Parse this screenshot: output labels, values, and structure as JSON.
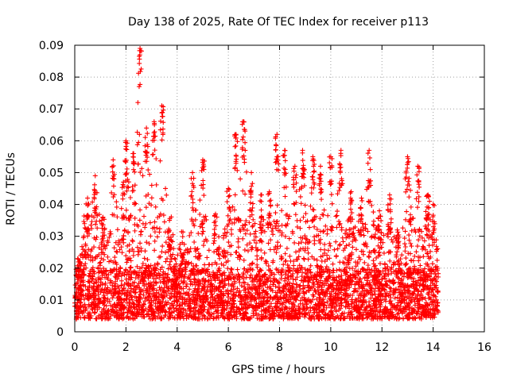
{
  "chart_data": {
    "type": "scatter",
    "title": "Day 138 of 2025, Rate Of TEC Index for receiver p113",
    "xlabel": "GPS time / hours",
    "ylabel": "ROTI / TECUs",
    "xlim": [
      0,
      16
    ],
    "ylim": [
      0,
      0.09
    ],
    "x_ticks": [
      0,
      2,
      4,
      6,
      8,
      10,
      12,
      14,
      16
    ],
    "y_ticks": [
      0,
      0.01,
      0.02,
      0.03,
      0.04,
      0.05,
      0.06,
      0.07,
      0.08,
      0.09
    ],
    "x_tick_labels": [
      "0",
      "2",
      "4",
      "6",
      "8",
      "10",
      "12",
      "14",
      "16"
    ],
    "y_tick_labels": [
      "0",
      "0.01",
      "0.02",
      "0.03",
      "0.04",
      "0.05",
      "0.06",
      "0.07",
      "0.08",
      "0.09"
    ],
    "grid": true,
    "marker": "plus",
    "color": "#ff0000",
    "data_range_x": [
      0,
      14.2
    ],
    "series": [
      {
        "name": "ROTI",
        "note": "dense plus-marker scatter, baseline ~0.003-0.02 TECU/s with spikes",
        "peaks": [
          {
            "x": 0.2,
            "y": 0.022
          },
          {
            "x": 0.5,
            "y": 0.042
          },
          {
            "x": 0.8,
            "y": 0.049
          },
          {
            "x": 1.1,
            "y": 0.036
          },
          {
            "x": 1.5,
            "y": 0.054
          },
          {
            "x": 1.9,
            "y": 0.047
          },
          {
            "x": 2.0,
            "y": 0.06
          },
          {
            "x": 2.3,
            "y": 0.056
          },
          {
            "x": 2.55,
            "y": 0.089
          },
          {
            "x": 2.8,
            "y": 0.064
          },
          {
            "x": 3.1,
            "y": 0.066
          },
          {
            "x": 3.4,
            "y": 0.071
          },
          {
            "x": 3.7,
            "y": 0.035
          },
          {
            "x": 4.2,
            "y": 0.028
          },
          {
            "x": 4.6,
            "y": 0.05
          },
          {
            "x": 5.0,
            "y": 0.054
          },
          {
            "x": 5.5,
            "y": 0.037
          },
          {
            "x": 6.0,
            "y": 0.045
          },
          {
            "x": 6.3,
            "y": 0.062
          },
          {
            "x": 6.6,
            "y": 0.066
          },
          {
            "x": 6.9,
            "y": 0.05
          },
          {
            "x": 7.3,
            "y": 0.043
          },
          {
            "x": 7.6,
            "y": 0.044
          },
          {
            "x": 7.9,
            "y": 0.062
          },
          {
            "x": 8.2,
            "y": 0.057
          },
          {
            "x": 8.6,
            "y": 0.052
          },
          {
            "x": 8.9,
            "y": 0.057
          },
          {
            "x": 9.3,
            "y": 0.055
          },
          {
            "x": 9.6,
            "y": 0.052
          },
          {
            "x": 10.0,
            "y": 0.055
          },
          {
            "x": 10.4,
            "y": 0.057
          },
          {
            "x": 10.8,
            "y": 0.044
          },
          {
            "x": 11.2,
            "y": 0.042
          },
          {
            "x": 11.5,
            "y": 0.057
          },
          {
            "x": 11.9,
            "y": 0.038
          },
          {
            "x": 12.3,
            "y": 0.043
          },
          {
            "x": 12.6,
            "y": 0.032
          },
          {
            "x": 13.0,
            "y": 0.055
          },
          {
            "x": 13.4,
            "y": 0.052
          },
          {
            "x": 13.8,
            "y": 0.043
          },
          {
            "x": 14.0,
            "y": 0.04
          }
        ]
      }
    ]
  }
}
